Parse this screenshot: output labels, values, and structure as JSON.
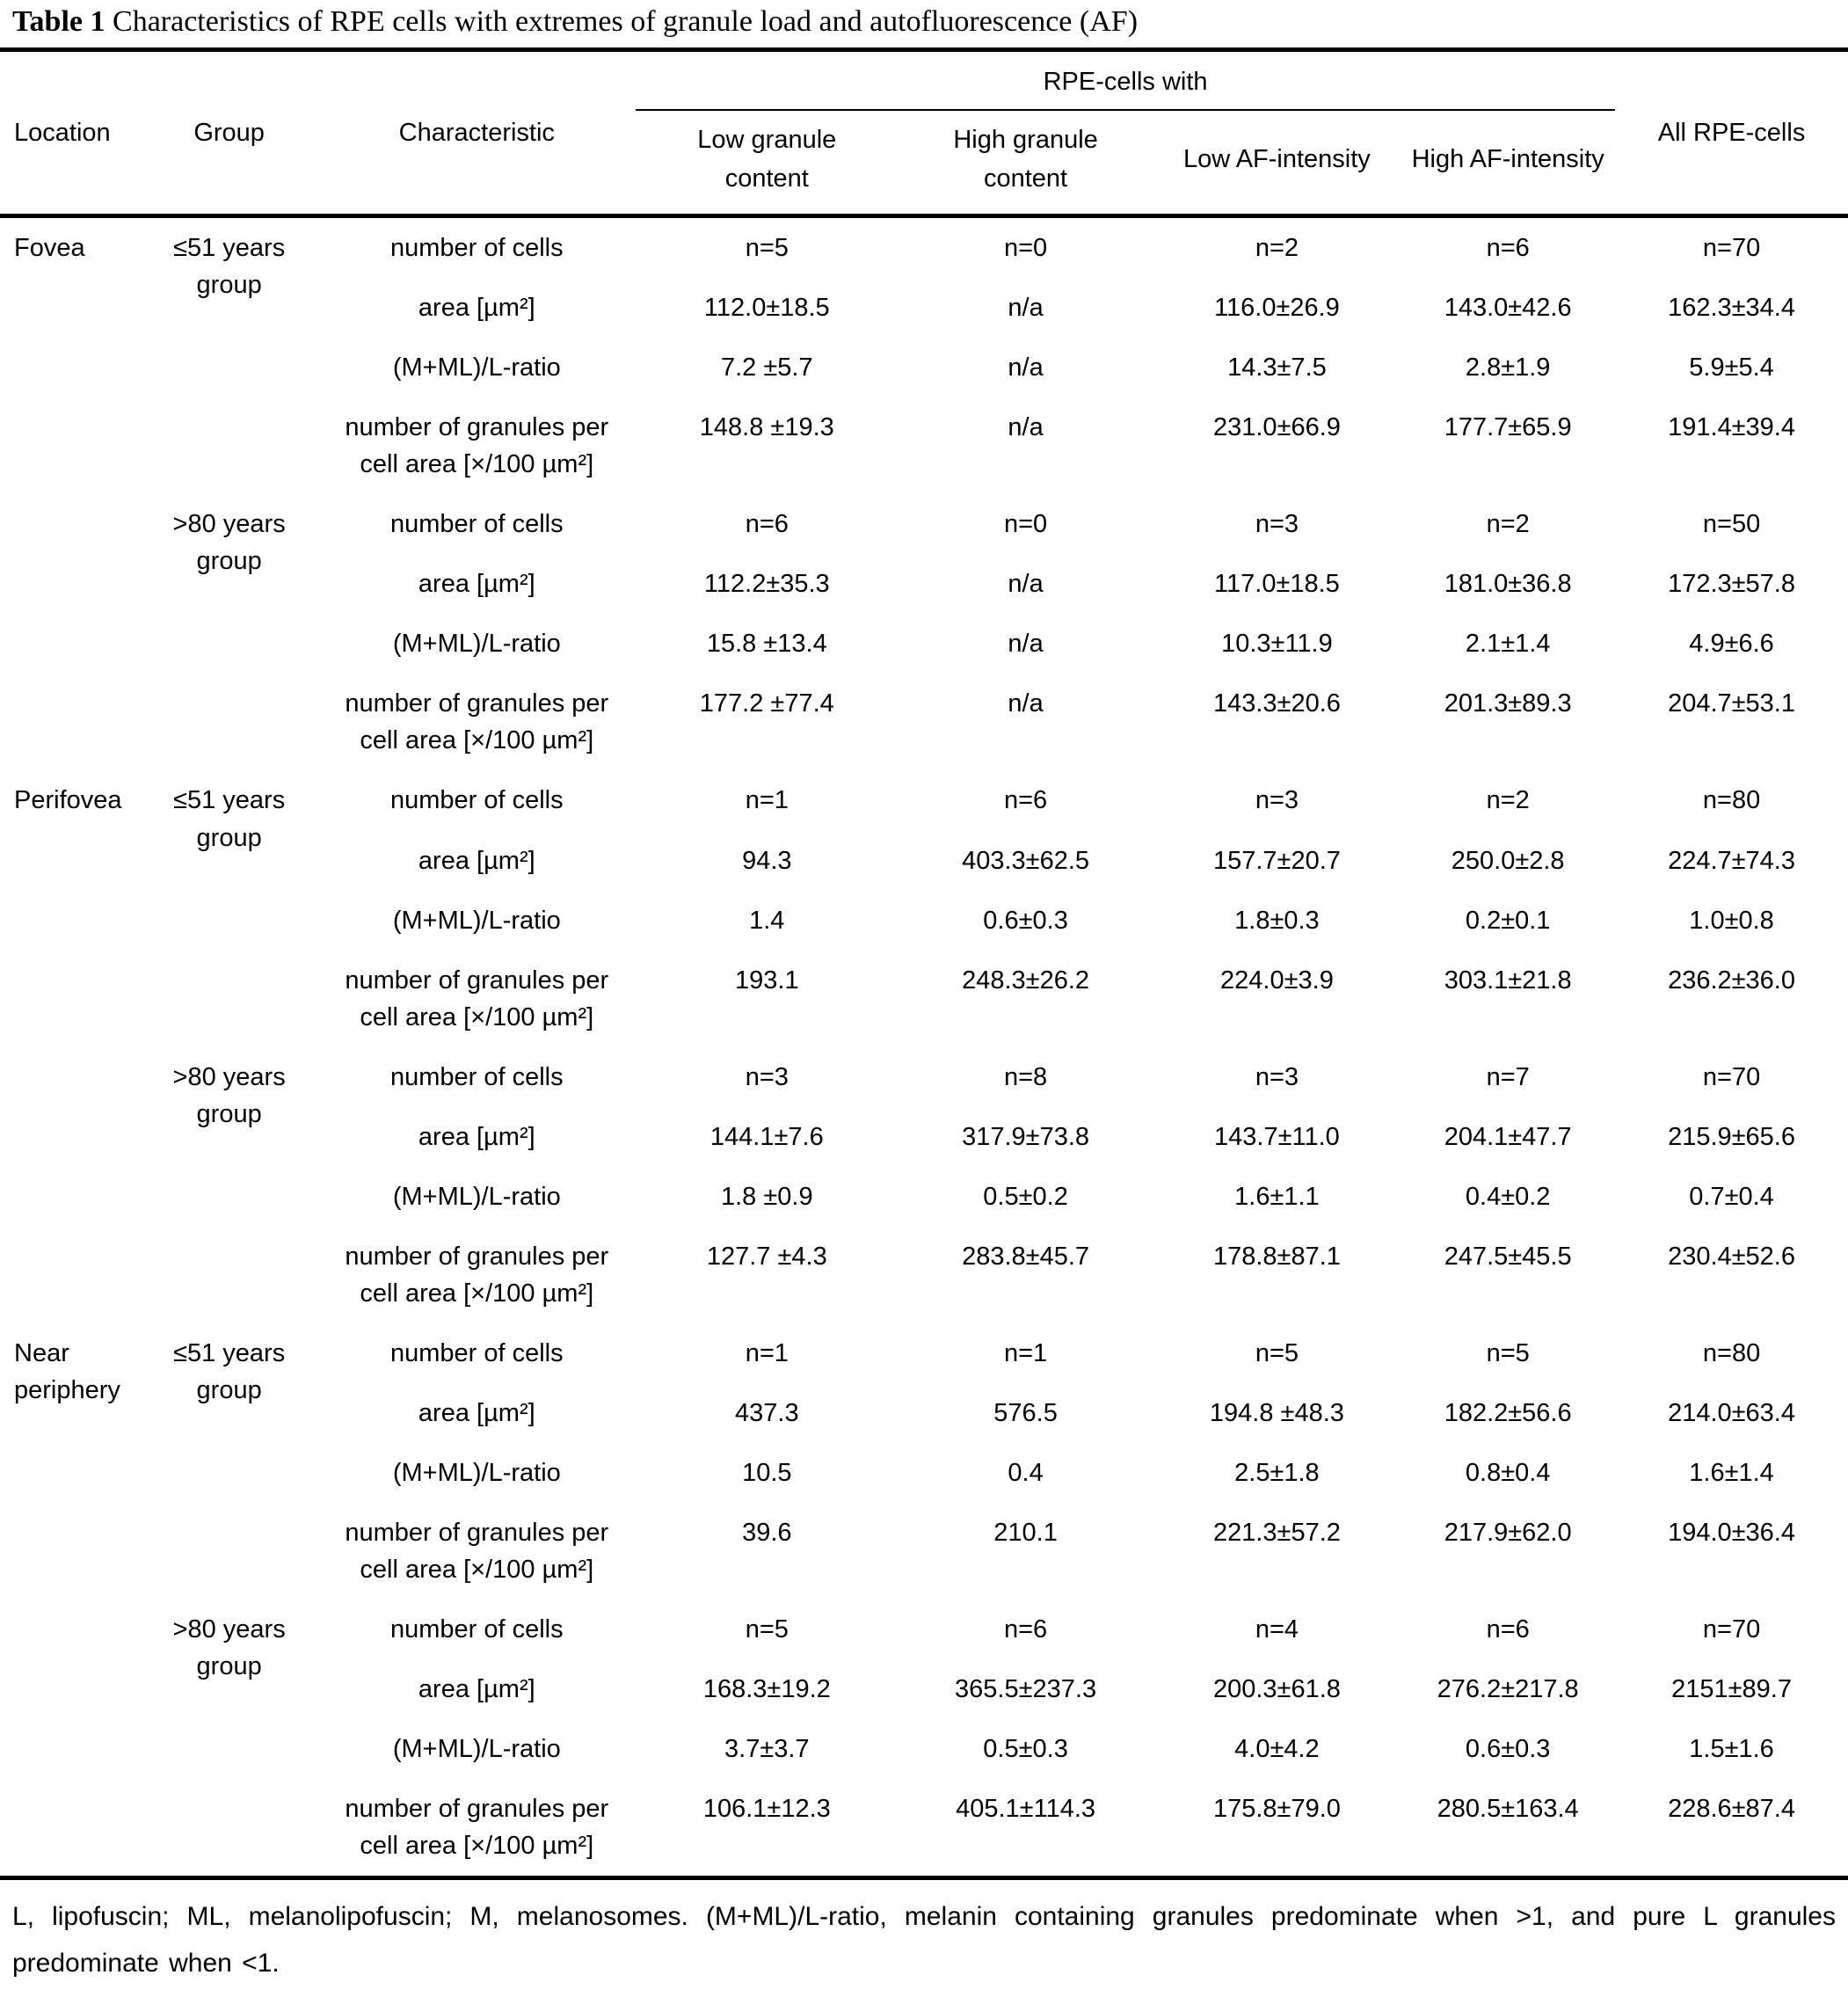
{
  "title": {
    "bold": "Table 1",
    "rest": " Characteristics of RPE cells with extremes of granule load and autofluorescence (AF)"
  },
  "header": {
    "location": "Location",
    "group": "Group",
    "characteristic": "Characteristic",
    "span": "RPE-cells with",
    "columns": [
      "Low granule\ncontent",
      "High granule\ncontent",
      "Low AF-intensity",
      "High AF-intensity"
    ],
    "all": "All RPE-cells"
  },
  "row_labels": [
    "number of cells",
    "area [µm²]",
    "(M+ML)/L-ratio",
    "number of granules per\ncell area [×/100 µm²]"
  ],
  "sections": [
    {
      "location": "Fovea",
      "groups": [
        {
          "name": "≤51 years\ngroup",
          "rows": [
            [
              "n=5",
              "n=0",
              "n=2",
              "n=6",
              "n=70"
            ],
            [
              "112.0±18.5",
              "n/a",
              "116.0±26.9",
              "143.0±42.6",
              "162.3±34.4"
            ],
            [
              "7.2 ±5.7",
              "n/a",
              "14.3±7.5",
              "2.8±1.9",
              "5.9±5.4"
            ],
            [
              "148.8 ±19.3",
              "n/a",
              "231.0±66.9",
              "177.7±65.9",
              "191.4±39.4"
            ]
          ]
        },
        {
          "name": ">80 years\ngroup",
          "rows": [
            [
              "n=6",
              "n=0",
              "n=3",
              "n=2",
              "n=50"
            ],
            [
              "112.2±35.3",
              "n/a",
              "117.0±18.5",
              "181.0±36.8",
              "172.3±57.8"
            ],
            [
              "15.8 ±13.4",
              "n/a",
              "10.3±11.9",
              "2.1±1.4",
              "4.9±6.6"
            ],
            [
              "177.2 ±77.4",
              "n/a",
              "143.3±20.6",
              "201.3±89.3",
              "204.7±53.1"
            ]
          ]
        }
      ]
    },
    {
      "location": "Perifovea",
      "groups": [
        {
          "name": "≤51 years\ngroup",
          "rows": [
            [
              "n=1",
              "n=6",
              "n=3",
              "n=2",
              "n=80"
            ],
            [
              "94.3",
              "403.3±62.5",
              "157.7±20.7",
              "250.0±2.8",
              "224.7±74.3"
            ],
            [
              "1.4",
              "0.6±0.3",
              "1.8±0.3",
              "0.2±0.1",
              "1.0±0.8"
            ],
            [
              "193.1",
              "248.3±26.2",
              "224.0±3.9",
              "303.1±21.8",
              "236.2±36.0"
            ]
          ]
        },
        {
          "name": ">80 years\ngroup",
          "rows": [
            [
              "n=3",
              "n=8",
              "n=3",
              "n=7",
              "n=70"
            ],
            [
              "144.1±7.6",
              "317.9±73.8",
              "143.7±11.0",
              "204.1±47.7",
              "215.9±65.6"
            ],
            [
              "1.8 ±0.9",
              "0.5±0.2",
              "1.6±1.1",
              "0.4±0.2",
              "0.7±0.4"
            ],
            [
              "127.7 ±4.3",
              "283.8±45.7",
              "178.8±87.1",
              "247.5±45.5",
              "230.4±52.6"
            ]
          ]
        }
      ]
    },
    {
      "location": "Near\nperiphery",
      "groups": [
        {
          "name": "≤51 years\ngroup",
          "rows": [
            [
              "n=1",
              "n=1",
              "n=5",
              "n=5",
              "n=80"
            ],
            [
              "437.3",
              "576.5",
              "194.8 ±48.3",
              "182.2±56.6",
              "214.0±63.4"
            ],
            [
              "10.5",
              "0.4",
              "2.5±1.8",
              "0.8±0.4",
              "1.6±1.4"
            ],
            [
              "39.6",
              "210.1",
              "221.3±57.2",
              "217.9±62.0",
              "194.0±36.4"
            ]
          ]
        },
        {
          "name": ">80 years\ngroup",
          "rows": [
            [
              "n=5",
              "n=6",
              "n=4",
              "n=6",
              "n=70"
            ],
            [
              "168.3±19.2",
              "365.5±237.3",
              "200.3±61.8",
              "276.2±217.8",
              "2151±89.7"
            ],
            [
              "3.7±3.7",
              "0.5±0.3",
              "4.0±4.2",
              "0.6±0.3",
              "1.5±1.6"
            ],
            [
              "106.1±12.3",
              "405.1±114.3",
              "175.8±79.0",
              "280.5±163.4",
              "228.6±87.4"
            ]
          ]
        }
      ]
    }
  ],
  "footnote": "L, lipofuscin; ML, melanolipofuscin; M, melanosomes. (M+ML)/L-ratio, melanin containing granules predominate when >1, and pure L granules predominate when <1."
}
